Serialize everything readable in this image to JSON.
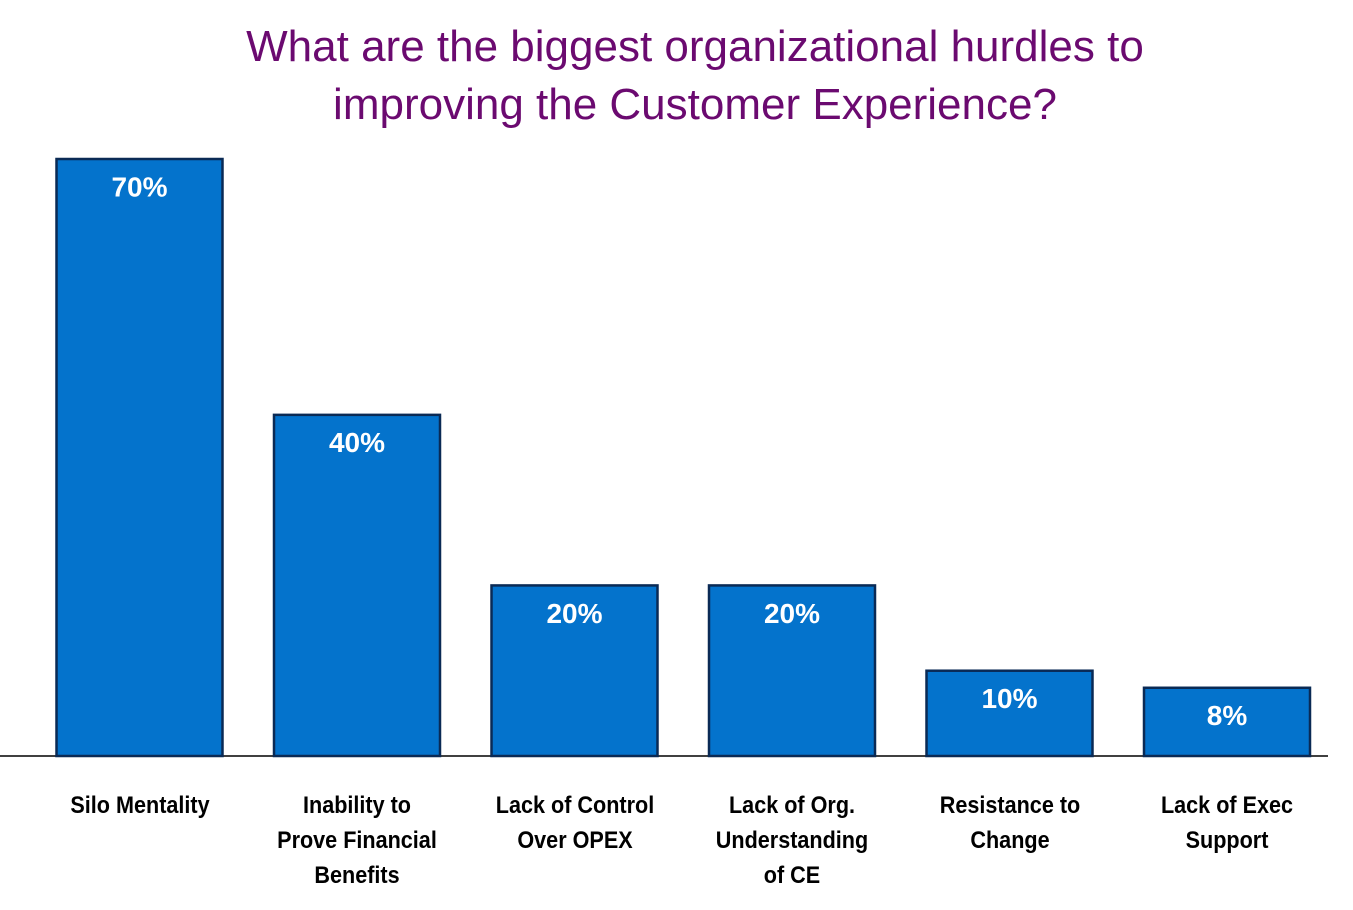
{
  "chart_data": {
    "type": "bar",
    "title": "What are the biggest organizational hurdles to\nimproving the Customer Experience?",
    "categories": [
      "Silo Mentality",
      "Inability to\nProve Financial\nBenefits",
      "Lack of Control\nOver OPEX",
      "Lack of Org.\nUnderstanding\nof CE",
      "Resistance to\nChange",
      "Lack of Exec\nSupport"
    ],
    "values": [
      70,
      40,
      20,
      20,
      10,
      8
    ],
    "value_labels": [
      "70%",
      "40%",
      "20%",
      "20%",
      "10%",
      "8%"
    ],
    "color": "#0473cc"
  }
}
